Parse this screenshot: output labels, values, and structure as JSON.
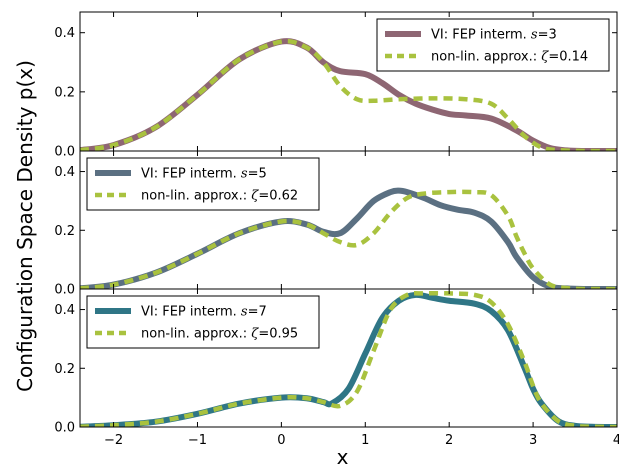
{
  "chart_data": [
    {
      "type": "line",
      "x_range": [
        -2.4,
        4.0
      ],
      "ylim": [
        0,
        0.47
      ],
      "yticks": [
        0.0,
        0.2,
        0.4
      ],
      "yticklabels": [
        "0.0",
        "0.2",
        "0.4"
      ],
      "legend_location": "top-right",
      "series": [
        {
          "name": "VI: FEP interm. s = 3",
          "legend_prefix": "VI: FEP interm. ",
          "legend_math": "s",
          "legend_value": "=3",
          "color": "#8e6673",
          "style": "solid",
          "x": [
            -2.4,
            -2.0,
            -1.5,
            -1.0,
            -0.5,
            0.0,
            0.3,
            0.5,
            0.7,
            1.0,
            1.2,
            1.4,
            1.6,
            1.8,
            2.0,
            2.2,
            2.5,
            2.8,
            3.0,
            3.2,
            3.4,
            3.6,
            4.0
          ],
          "y": [
            0.003,
            0.02,
            0.08,
            0.19,
            0.31,
            0.37,
            0.35,
            0.3,
            0.27,
            0.26,
            0.23,
            0.19,
            0.16,
            0.14,
            0.125,
            0.12,
            0.11,
            0.07,
            0.035,
            0.01,
            0.002,
            0.0,
            0.0
          ]
        },
        {
          "name": "non-lin. approx.: ζ = 0.14",
          "legend_prefix": "non-lin. approx.: ",
          "legend_math": "ζ",
          "legend_value": "=0.14",
          "color": "#a9c23f",
          "style": "dashed",
          "x": [
            -2.4,
            -2.0,
            -1.5,
            -1.0,
            -0.5,
            0.0,
            0.3,
            0.5,
            0.7,
            0.9,
            1.1,
            1.4,
            1.8,
            2.2,
            2.5,
            2.7,
            2.9,
            3.1,
            3.3,
            3.6,
            4.0
          ],
          "y": [
            0.003,
            0.02,
            0.08,
            0.19,
            0.31,
            0.37,
            0.35,
            0.3,
            0.22,
            0.175,
            0.17,
            0.175,
            0.178,
            0.175,
            0.16,
            0.11,
            0.05,
            0.012,
            0.003,
            0.0,
            0.0
          ]
        }
      ]
    },
    {
      "type": "line",
      "x_range": [
        -2.4,
        4.0
      ],
      "ylim": [
        0,
        0.47
      ],
      "yticks": [
        0.0,
        0.2,
        0.4
      ],
      "yticklabels": [
        "0.0",
        "0.2",
        "0.4"
      ],
      "legend_location": "top-left",
      "series": [
        {
          "name": "VI: FEP interm. s = 5",
          "legend_prefix": "VI: FEP interm. ",
          "legend_math": "s",
          "legend_value": "=5",
          "color": "#5b7082",
          "style": "solid",
          "x": [
            -2.4,
            -2.0,
            -1.5,
            -1.0,
            -0.5,
            0.0,
            0.3,
            0.5,
            0.7,
            0.9,
            1.1,
            1.3,
            1.4,
            1.5,
            1.7,
            1.9,
            2.1,
            2.3,
            2.5,
            2.7,
            2.8,
            3.0,
            3.2,
            3.4,
            3.6,
            4.0
          ],
          "y": [
            0.002,
            0.015,
            0.055,
            0.12,
            0.19,
            0.23,
            0.22,
            0.195,
            0.19,
            0.24,
            0.3,
            0.33,
            0.335,
            0.33,
            0.31,
            0.285,
            0.27,
            0.26,
            0.23,
            0.16,
            0.11,
            0.04,
            0.008,
            0.002,
            0.0,
            0.0
          ]
        },
        {
          "name": "non-lin. approx.: ζ = 0.62",
          "legend_prefix": "non-lin. approx.: ",
          "legend_math": "ζ",
          "legend_value": "=0.62",
          "color": "#a9c23f",
          "style": "dashed",
          "x": [
            -2.4,
            -2.0,
            -1.5,
            -1.0,
            -0.5,
            0.0,
            0.3,
            0.5,
            0.7,
            0.9,
            1.1,
            1.3,
            1.5,
            1.7,
            2.0,
            2.3,
            2.5,
            2.7,
            2.8,
            2.9,
            3.0,
            3.2,
            3.4,
            3.6,
            4.0
          ],
          "y": [
            0.002,
            0.015,
            0.055,
            0.12,
            0.19,
            0.23,
            0.22,
            0.19,
            0.16,
            0.15,
            0.19,
            0.26,
            0.31,
            0.325,
            0.33,
            0.33,
            0.32,
            0.25,
            0.18,
            0.12,
            0.07,
            0.015,
            0.003,
            0.0,
            0.0
          ]
        }
      ]
    },
    {
      "type": "line",
      "x_range": [
        -2.4,
        4.0
      ],
      "ylim": [
        0,
        0.47
      ],
      "yticks": [
        0.0,
        0.2,
        0.4
      ],
      "yticklabels": [
        "0.0",
        "0.2",
        "0.4"
      ],
      "xticks": [
        -2,
        -1,
        0,
        1,
        2,
        3,
        4
      ],
      "xticklabels": [
        "−2",
        "−1",
        "0",
        "1",
        "2",
        "3",
        "4"
      ],
      "xlabel": "x",
      "legend_location": "top-left",
      "series": [
        {
          "name": "VI: FEP interm. s = 7",
          "legend_prefix": "VI: FEP interm. ",
          "legend_math": "s",
          "legend_value": "=7",
          "color": "#2f7686",
          "style": "solid",
          "x": [
            -2.4,
            -2.0,
            -1.5,
            -1.0,
            -0.5,
            0.0,
            0.3,
            0.5,
            0.6,
            0.8,
            1.0,
            1.2,
            1.4,
            1.6,
            1.8,
            2.0,
            2.3,
            2.5,
            2.7,
            2.9,
            3.0,
            3.1,
            3.3,
            3.5,
            3.7,
            4.0
          ],
          "y": [
            0.001,
            0.006,
            0.018,
            0.045,
            0.08,
            0.1,
            0.098,
            0.085,
            0.08,
            0.13,
            0.25,
            0.37,
            0.43,
            0.45,
            0.44,
            0.43,
            0.42,
            0.395,
            0.33,
            0.2,
            0.13,
            0.08,
            0.02,
            0.004,
            0.001,
            0.0
          ]
        },
        {
          "name": "non-lin. approx.: ζ = 0.95",
          "legend_prefix": "non-lin. approx.: ",
          "legend_math": "ζ",
          "legend_value": "=0.95",
          "color": "#a9c23f",
          "style": "dashed",
          "x": [
            -2.4,
            -2.0,
            -1.5,
            -1.0,
            -0.5,
            0.0,
            0.3,
            0.5,
            0.7,
            0.9,
            1.1,
            1.3,
            1.5,
            1.7,
            2.0,
            2.3,
            2.5,
            2.7,
            2.9,
            3.0,
            3.1,
            3.3,
            3.5,
            3.7,
            4.0
          ],
          "y": [
            0.001,
            0.006,
            0.018,
            0.045,
            0.08,
            0.1,
            0.098,
            0.085,
            0.072,
            0.12,
            0.26,
            0.4,
            0.45,
            0.455,
            0.455,
            0.45,
            0.425,
            0.35,
            0.22,
            0.14,
            0.08,
            0.02,
            0.004,
            0.001,
            0.0
          ]
        }
      ]
    }
  ],
  "shared_ylabel": "Configuration Space Density p(x)"
}
